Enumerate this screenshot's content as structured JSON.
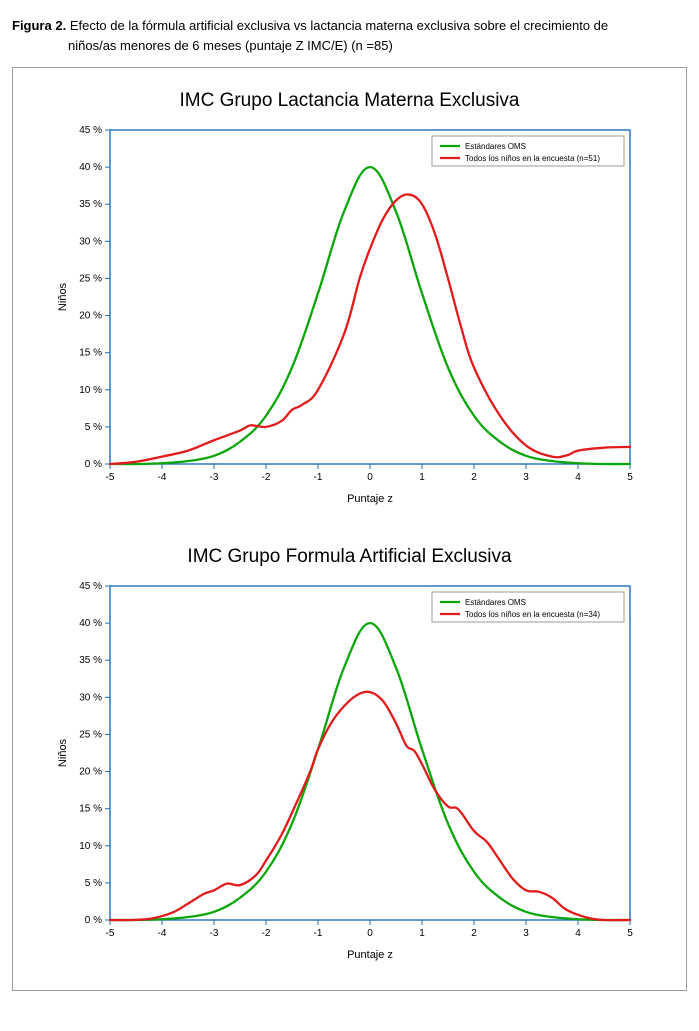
{
  "caption": {
    "label": "Figura 2.",
    "line1": "Efecto de la fórmula artificial exclusiva vs lactancia materna exclusiva sobre el crecimiento de",
    "line2": "niños/as menores de 6 meses (puntaje Z IMC/E) (n =85)"
  },
  "charts": [
    {
      "title": "IMC Grupo Lactancia Materna Exclusiva",
      "type": "line",
      "xlabel": "Puntaje z",
      "ylabel": "Niños",
      "xlim": [
        -5,
        5
      ],
      "ylim": [
        0,
        45
      ],
      "xtick_step": 1,
      "ytick_step": 5,
      "y_tick_suffix": " %",
      "background_color": "#ffffff",
      "axis_color": "#1f6fb5",
      "grid": false,
      "title_fontsize": 19,
      "label_fontsize": 11,
      "tick_fontsize": 10,
      "line_width": 2.3,
      "legend": {
        "position": "top-right",
        "items": [
          {
            "label": "Estándares OMS",
            "color": "#0aa60a"
          },
          {
            "label": "Todos los niños en la encuesta (n=51)",
            "color": "#e11b1b"
          }
        ]
      },
      "series": [
        {
          "name": "Estándares OMS",
          "color": "#0aa60a",
          "points": [
            [
              -5.0,
              0.0
            ],
            [
              -4.5,
              0.0
            ],
            [
              -4.0,
              0.1
            ],
            [
              -3.5,
              0.4
            ],
            [
              -3.0,
              1.1
            ],
            [
              -2.5,
              3.0
            ],
            [
              -2.0,
              6.5
            ],
            [
              -1.5,
              13.0
            ],
            [
              -1.0,
              23.0
            ],
            [
              -0.5,
              34.0
            ],
            [
              0.0,
              40.0
            ],
            [
              0.5,
              34.0
            ],
            [
              1.0,
              23.0
            ],
            [
              1.5,
              13.0
            ],
            [
              2.0,
              6.5
            ],
            [
              2.5,
              3.0
            ],
            [
              3.0,
              1.1
            ],
            [
              3.5,
              0.4
            ],
            [
              4.0,
              0.1
            ],
            [
              4.5,
              0.0
            ],
            [
              5.0,
              0.0
            ]
          ]
        },
        {
          "name": "Todos los niños en la encuesta (n=51)",
          "color": "#e11b1b",
          "points": [
            [
              -5.0,
              0.0
            ],
            [
              -4.5,
              0.3
            ],
            [
              -4.0,
              1.0
            ],
            [
              -3.5,
              1.8
            ],
            [
              -3.0,
              3.2
            ],
            [
              -2.5,
              4.5
            ],
            [
              -2.3,
              5.2
            ],
            [
              -2.0,
              5.0
            ],
            [
              -1.7,
              5.8
            ],
            [
              -1.5,
              7.3
            ],
            [
              -1.3,
              8.0
            ],
            [
              -1.0,
              10.0
            ],
            [
              -0.5,
              17.5
            ],
            [
              -0.2,
              25.0
            ],
            [
              0.0,
              29.0
            ],
            [
              0.25,
              33.0
            ],
            [
              0.5,
              35.5
            ],
            [
              0.75,
              36.3
            ],
            [
              1.0,
              35.0
            ],
            [
              1.25,
              31.0
            ],
            [
              1.5,
              25.0
            ],
            [
              1.75,
              18.5
            ],
            [
              2.0,
              13.0
            ],
            [
              2.5,
              6.5
            ],
            [
              3.0,
              2.5
            ],
            [
              3.5,
              1.0
            ],
            [
              3.8,
              1.2
            ],
            [
              4.0,
              1.8
            ],
            [
              4.5,
              2.2
            ],
            [
              5.0,
              2.3
            ]
          ]
        }
      ]
    },
    {
      "title": "IMC Grupo Formula Artificial Exclusiva",
      "type": "line",
      "xlabel": "Puntaje z",
      "ylabel": "Niños",
      "xlim": [
        -5,
        5
      ],
      "ylim": [
        0,
        45
      ],
      "xtick_step": 1,
      "ytick_step": 5,
      "y_tick_suffix": " %",
      "background_color": "#ffffff",
      "axis_color": "#1f6fb5",
      "grid": false,
      "title_fontsize": 19,
      "label_fontsize": 11,
      "tick_fontsize": 10,
      "line_width": 2.3,
      "legend": {
        "position": "top-right",
        "items": [
          {
            "label": "Estándares OMS",
            "color": "#0aa60a"
          },
          {
            "label": "Todos los niños en la encuesta (n=34)",
            "color": "#e11b1b"
          }
        ]
      },
      "series": [
        {
          "name": "Estándares OMS",
          "color": "#0aa60a",
          "points": [
            [
              -5.0,
              0.0
            ],
            [
              -4.5,
              0.0
            ],
            [
              -4.0,
              0.1
            ],
            [
              -3.5,
              0.4
            ],
            [
              -3.0,
              1.1
            ],
            [
              -2.5,
              3.0
            ],
            [
              -2.0,
              6.5
            ],
            [
              -1.5,
              13.0
            ],
            [
              -1.0,
              23.0
            ],
            [
              -0.5,
              34.0
            ],
            [
              0.0,
              40.0
            ],
            [
              0.5,
              34.0
            ],
            [
              1.0,
              23.0
            ],
            [
              1.5,
              13.0
            ],
            [
              2.0,
              6.5
            ],
            [
              2.5,
              3.0
            ],
            [
              3.0,
              1.1
            ],
            [
              3.5,
              0.4
            ],
            [
              4.0,
              0.1
            ],
            [
              4.5,
              0.0
            ],
            [
              5.0,
              0.0
            ]
          ]
        },
        {
          "name": "Todos los niños en la encuesta (n=34)",
          "color": "#e11b1b",
          "points": [
            [
              -5.0,
              0.0
            ],
            [
              -4.6,
              0.0
            ],
            [
              -4.2,
              0.2
            ],
            [
              -3.8,
              1.0
            ],
            [
              -3.5,
              2.2
            ],
            [
              -3.2,
              3.5
            ],
            [
              -3.0,
              4.0
            ],
            [
              -2.75,
              4.9
            ],
            [
              -2.5,
              4.7
            ],
            [
              -2.2,
              6.0
            ],
            [
              -2.0,
              8.0
            ],
            [
              -1.7,
              11.5
            ],
            [
              -1.4,
              16.0
            ],
            [
              -1.15,
              20.0
            ],
            [
              -1.0,
              23.0
            ],
            [
              -0.75,
              26.5
            ],
            [
              -0.5,
              28.8
            ],
            [
              -0.25,
              30.3
            ],
            [
              0.0,
              30.7
            ],
            [
              0.25,
              29.5
            ],
            [
              0.5,
              26.5
            ],
            [
              0.7,
              23.5
            ],
            [
              0.85,
              22.8
            ],
            [
              1.0,
              21.0
            ],
            [
              1.25,
              17.5
            ],
            [
              1.5,
              15.3
            ],
            [
              1.7,
              14.9
            ],
            [
              2.0,
              12.0
            ],
            [
              2.25,
              10.5
            ],
            [
              2.5,
              8.0
            ],
            [
              2.75,
              5.5
            ],
            [
              3.0,
              4.0
            ],
            [
              3.25,
              3.8
            ],
            [
              3.5,
              3.0
            ],
            [
              3.75,
              1.5
            ],
            [
              4.0,
              0.7
            ],
            [
              4.25,
              0.2
            ],
            [
              4.5,
              0.0
            ],
            [
              5.0,
              0.0
            ]
          ]
        }
      ]
    }
  ]
}
